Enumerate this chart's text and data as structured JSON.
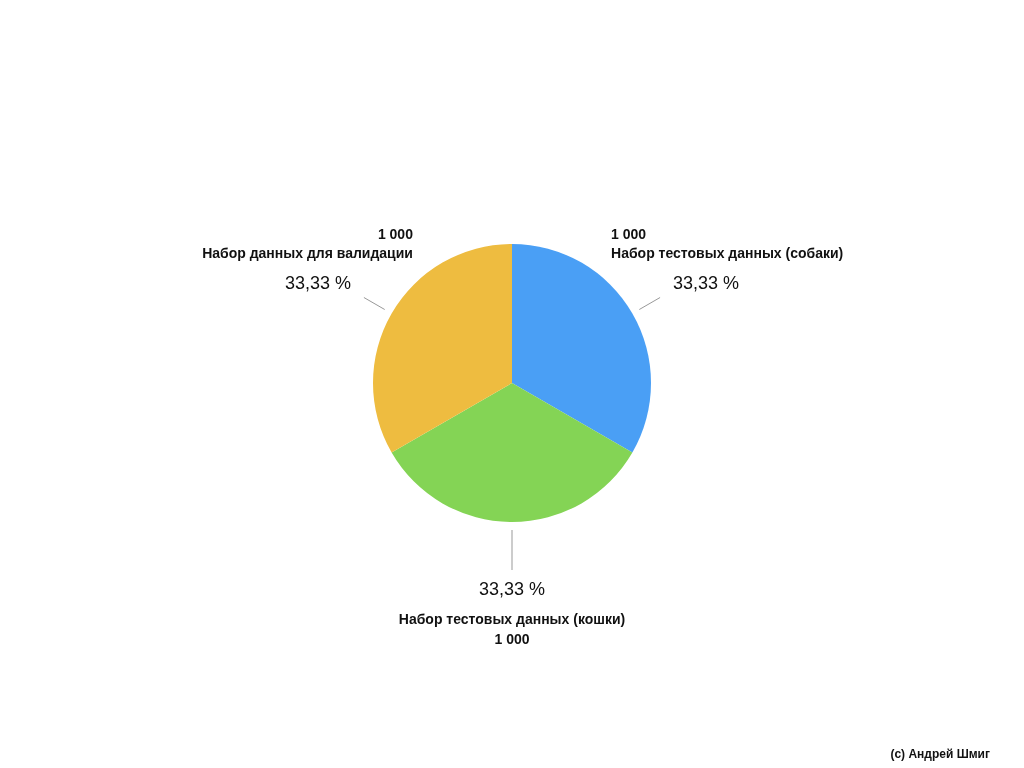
{
  "chart_data": {
    "type": "pie",
    "categories": [
      "Набор тестовых данных (собаки)",
      "Набор тестовых данных (кошки)",
      "Набор данных для валидации"
    ],
    "values": [
      1000,
      1000,
      1000
    ],
    "colors": [
      "#4a9ff5",
      "#84d455",
      "#eebc40"
    ],
    "value_labels": [
      "1 000",
      "1 000",
      "1 000"
    ],
    "annotations": [
      {
        "text": "33,33 %",
        "x": "Набор тестовых данных (собаки)"
      },
      {
        "text": "33,33 %",
        "x": "Набор тестовых данных (кошки)"
      },
      {
        "text": "33,33 %",
        "x": "Набор данных для валидации"
      },
      "(c) Андрей Шмиг"
    ],
    "legend": false
  }
}
